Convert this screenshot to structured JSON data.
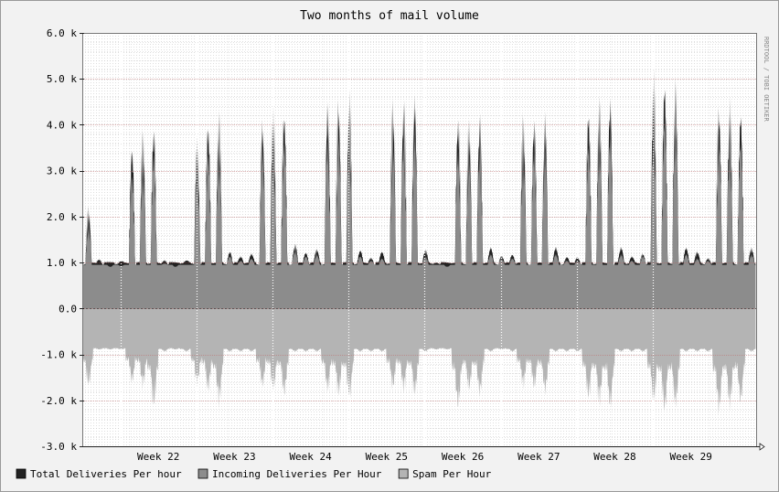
{
  "chart_data": {
    "type": "area",
    "title": "Two months of mail volume",
    "watermark": "RRDTOOL / TOBI OETIKER",
    "ylim": [
      -3000,
      6000
    ],
    "yticks": [
      {
        "value": 6000,
        "label": "6.0 k"
      },
      {
        "value": 5000,
        "label": "5.0 k"
      },
      {
        "value": 4000,
        "label": "4.0 k"
      },
      {
        "value": 3000,
        "label": "3.0 k"
      },
      {
        "value": 2000,
        "label": "2.0 k"
      },
      {
        "value": 1000,
        "label": "1.0 k"
      },
      {
        "value": 0,
        "label": "0.0"
      },
      {
        "value": -1000,
        "label": "-1.0 k"
      },
      {
        "value": -2000,
        "label": "-2.0 k"
      },
      {
        "value": -3000,
        "label": "-3.0 k"
      }
    ],
    "x_range_days": [
      0,
      62
    ],
    "week_boundaries_day": [
      3.5,
      10.5,
      17.5,
      24.5,
      31.5,
      38.5,
      45.5,
      52.5
    ],
    "xticks": [
      {
        "day": 7,
        "label": "Week 22"
      },
      {
        "day": 14,
        "label": "Week 23"
      },
      {
        "day": 21,
        "label": "Week 24"
      },
      {
        "day": 28,
        "label": "Week 25"
      },
      {
        "day": 35,
        "label": "Week 26"
      },
      {
        "day": 42,
        "label": "Week 27"
      },
      {
        "day": 49,
        "label": "Week 28"
      },
      {
        "day": 56,
        "label": "Week 29"
      }
    ],
    "grid": true,
    "legend_position": "bottom-left",
    "series": [
      {
        "name": "Total Deliveries Per hour",
        "color": "#222222",
        "daily_peak": [
          2200,
          1050,
          950,
          1000,
          3700,
          3900,
          4100,
          1050,
          950,
          1000,
          3800,
          4200,
          4300,
          1250,
          1100,
          1150,
          4250,
          4400,
          4450,
          1400,
          1200,
          1250,
          4650,
          4700,
          4750,
          1250,
          1100,
          1200,
          4600,
          4700,
          4800,
          1250,
          1000,
          950,
          4300,
          4200,
          4350,
          1300,
          1150,
          1150,
          4250,
          4300,
          4350,
          1300,
          1100,
          1100,
          4500,
          4650,
          4800,
          1300,
          1100,
          1200,
          5200,
          5200,
          5100,
          1300,
          1200,
          1100,
          4550,
          4550,
          4550,
          1300
        ]
      },
      {
        "name": "Incoming Deliveries Per Hour",
        "color": "#8c8c8c",
        "daily_peak": [
          1900,
          950,
          900,
          920,
          3100,
          3400,
          3600,
          980,
          900,
          950,
          3300,
          3650,
          3750,
          1150,
          1050,
          1100,
          3650,
          3850,
          3900,
          1300,
          1150,
          1200,
          3950,
          4050,
          4100,
          1150,
          1050,
          1100,
          3900,
          4000,
          4100,
          1150,
          950,
          900,
          3650,
          3600,
          3700,
          1200,
          1100,
          1100,
          3650,
          3700,
          3750,
          1200,
          1050,
          1050,
          3850,
          4000,
          4100,
          1200,
          1050,
          1150,
          4400,
          4450,
          4400,
          1200,
          1100,
          1050,
          3900,
          3900,
          3900,
          1200
        ],
        "baseline": 950
      },
      {
        "name": "Spam Per Hour",
        "color": "#b4b4b4",
        "daily_min": [
          -1800,
          -900,
          -900,
          -900,
          -1700,
          -1800,
          -2300,
          -950,
          -900,
          -950,
          -1750,
          -1900,
          -2200,
          -950,
          -950,
          -950,
          -1800,
          -1900,
          -2000,
          -950,
          -950,
          -950,
          -1900,
          -2000,
          -2100,
          -950,
          -950,
          -950,
          -1850,
          -1900,
          -2000,
          -950,
          -900,
          -900,
          -2300,
          -1900,
          -2000,
          -950,
          -900,
          -950,
          -1800,
          -1850,
          -1950,
          -950,
          -950,
          -950,
          -2100,
          -2200,
          -2300,
          -950,
          -950,
          -950,
          -2200,
          -2400,
          -2300,
          -950,
          -950,
          -950,
          -2400,
          -2300,
          -2200,
          -950
        ],
        "baseline": -850
      }
    ]
  }
}
